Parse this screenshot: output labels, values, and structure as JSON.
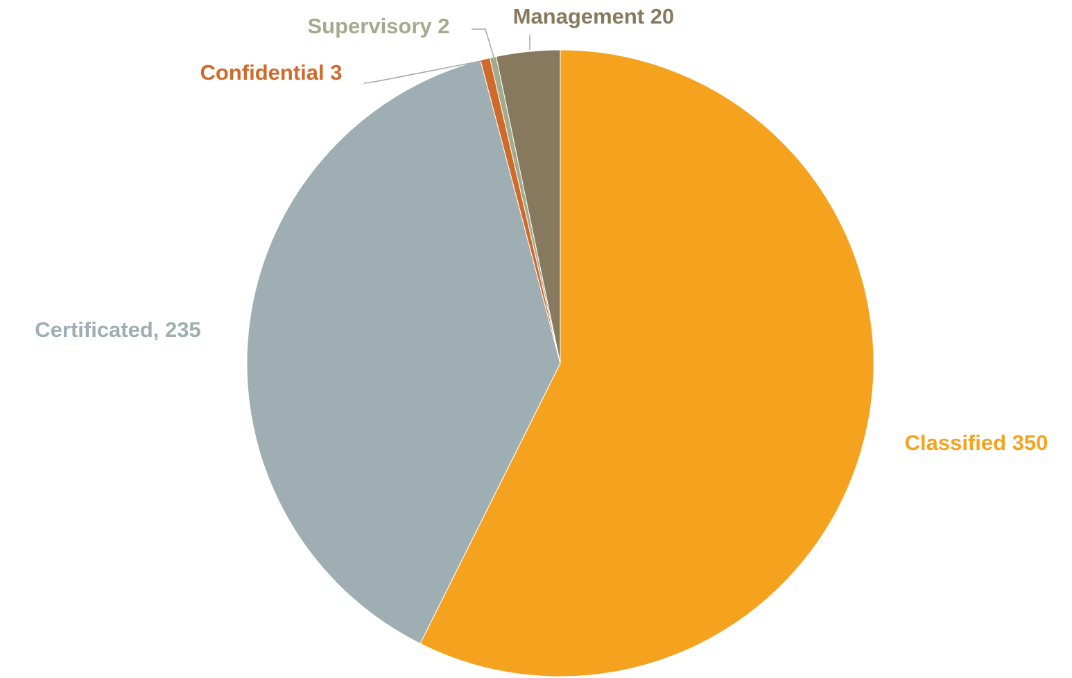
{
  "chart_data": {
    "type": "pie",
    "categories": [
      "Classified",
      "Certificated",
      "Confidential",
      "Supervisory",
      "Management"
    ],
    "values": [
      350,
      235,
      3,
      2,
      20
    ],
    "value_labels": [
      "Classified 350",
      "Certificated, 235",
      "Confidential 3",
      "Supervisory 2",
      "Management 20"
    ],
    "colors": [
      "#f5a31f",
      "#9eaeb3",
      "#cf6a2b",
      "#a4ab8c",
      "#87795d"
    ]
  }
}
